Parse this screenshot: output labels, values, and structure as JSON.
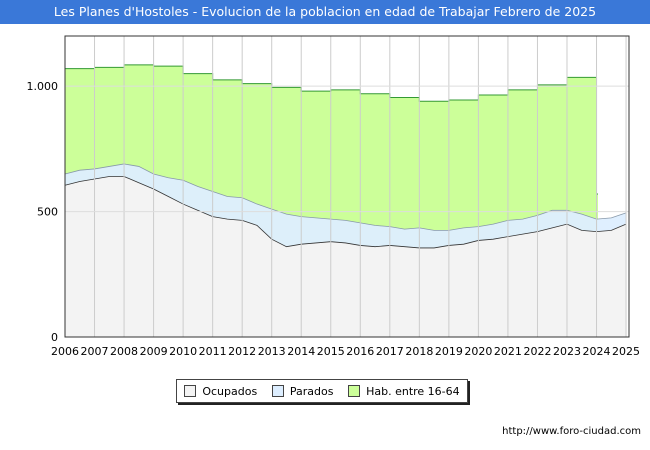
{
  "title": "Les Planes d'Hostoles - Evolucion de la poblacion en edad de Trabajar Febrero de 2025",
  "source": "http://www.foro-ciudad.com",
  "colors": {
    "title_bg": "#3a78d8",
    "hab_fill": "#ccff99",
    "hab_line": "#339933",
    "parados_fill": "#ddeeff",
    "parados_line": "#8899aa",
    "ocupados_fill": "#f3f3f3",
    "ocupados_line": "#333333"
  },
  "legend": [
    {
      "label": "Ocupados",
      "color": "#f3f3f3"
    },
    {
      "label": "Parados",
      "color": "#ddeeff"
    },
    {
      "label": "Hab. entre 16-64",
      "color": "#ccff99"
    }
  ],
  "chart_data": {
    "type": "area",
    "title": "Les Planes d'Hostoles - Evolucion de la poblacion en edad de Trabajar Febrero de 2025",
    "xlim": [
      2006,
      2025.1
    ],
    "ylim": [
      0,
      1200
    ],
    "y_ticks": [
      0,
      500,
      1000
    ],
    "y_tick_labels": [
      "0",
      "500",
      "1.000"
    ],
    "x_ticks": [
      "2006",
      "2007",
      "2008",
      "2009",
      "2010",
      "2011",
      "2012",
      "2013",
      "2014",
      "2015",
      "2016",
      "2017",
      "2018",
      "2019",
      "2020",
      "2021",
      "2022",
      "2023",
      "2024",
      "2025"
    ],
    "grid": true,
    "legend_position": "bottom",
    "series": [
      {
        "name": "Hab. entre 16-64",
        "step": true,
        "x": [
          2006,
          2007,
          2008,
          2009,
          2010,
          2011,
          2012,
          2013,
          2014,
          2015,
          2016,
          2017,
          2018,
          2019,
          2020,
          2021,
          2022,
          2023,
          2024
        ],
        "values": [
          1070,
          1075,
          1085,
          1080,
          1050,
          1025,
          1010,
          995,
          980,
          985,
          970,
          955,
          940,
          945,
          965,
          985,
          1005,
          1035,
          570
        ]
      },
      {
        "name": "Parados",
        "x": [
          2006,
          2006.5,
          2007,
          2007.5,
          2008,
          2008.5,
          2009,
          2009.5,
          2010,
          2010.5,
          2011,
          2011.5,
          2012,
          2012.5,
          2013,
          2013.5,
          2014,
          2014.5,
          2015,
          2015.5,
          2016,
          2016.5,
          2017,
          2017.5,
          2018,
          2018.5,
          2019,
          2019.5,
          2020,
          2020.5,
          2021,
          2021.5,
          2022,
          2022.5,
          2023,
          2023.5,
          2024,
          2024.5,
          2025
        ],
        "values": [
          650,
          665,
          670,
          680,
          690,
          680,
          650,
          635,
          625,
          600,
          580,
          560,
          555,
          530,
          510,
          490,
          480,
          475,
          470,
          465,
          455,
          445,
          440,
          430,
          435,
          425,
          425,
          435,
          440,
          450,
          465,
          470,
          485,
          505,
          505,
          490,
          470,
          475,
          495
        ]
      },
      {
        "name": "Ocupados",
        "x": [
          2006,
          2006.5,
          2007,
          2007.5,
          2008,
          2008.5,
          2009,
          2009.5,
          2010,
          2010.5,
          2011,
          2011.5,
          2012,
          2012.5,
          2013,
          2013.5,
          2014,
          2014.5,
          2015,
          2015.5,
          2016,
          2016.5,
          2017,
          2017.5,
          2018,
          2018.5,
          2019,
          2019.5,
          2020,
          2020.5,
          2021,
          2021.5,
          2022,
          2022.5,
          2023,
          2023.5,
          2024,
          2024.5,
          2025
        ],
        "values": [
          605,
          620,
          630,
          640,
          640,
          615,
          590,
          560,
          530,
          505,
          480,
          470,
          465,
          445,
          390,
          360,
          370,
          375,
          380,
          375,
          365,
          360,
          365,
          360,
          355,
          355,
          365,
          370,
          385,
          390,
          400,
          410,
          420,
          435,
          450,
          425,
          420,
          425,
          450
        ]
      }
    ]
  }
}
